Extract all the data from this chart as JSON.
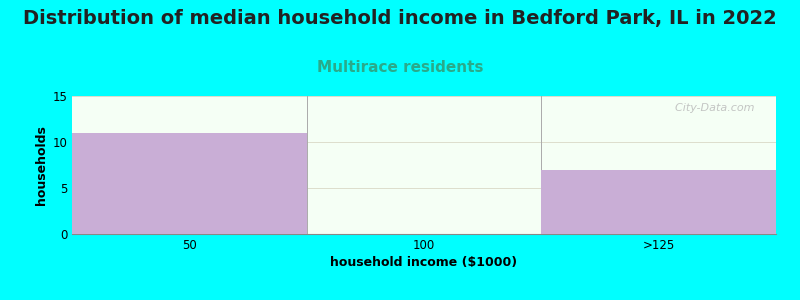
{
  "title": "Distribution of median household income in Bedford Park, IL in 2022",
  "subtitle": "Multirace residents",
  "categories": [
    "50",
    "100",
    ">125"
  ],
  "values": [
    11,
    0,
    7
  ],
  "bar_color": "#c9aed6",
  "background_color": "#00ffff",
  "plot_bg_top": "#f5fff5",
  "plot_bg_bottom": "#eaf5ea",
  "xlabel": "household income ($1000)",
  "ylabel": "households",
  "ylim": [
    0,
    15
  ],
  "yticks": [
    0,
    5,
    10,
    15
  ],
  "title_fontsize": 14,
  "subtitle_fontsize": 11,
  "subtitle_color": "#2aaa8a",
  "axis_label_fontsize": 9,
  "tick_fontsize": 8.5,
  "watermark": "  City-Data.com"
}
